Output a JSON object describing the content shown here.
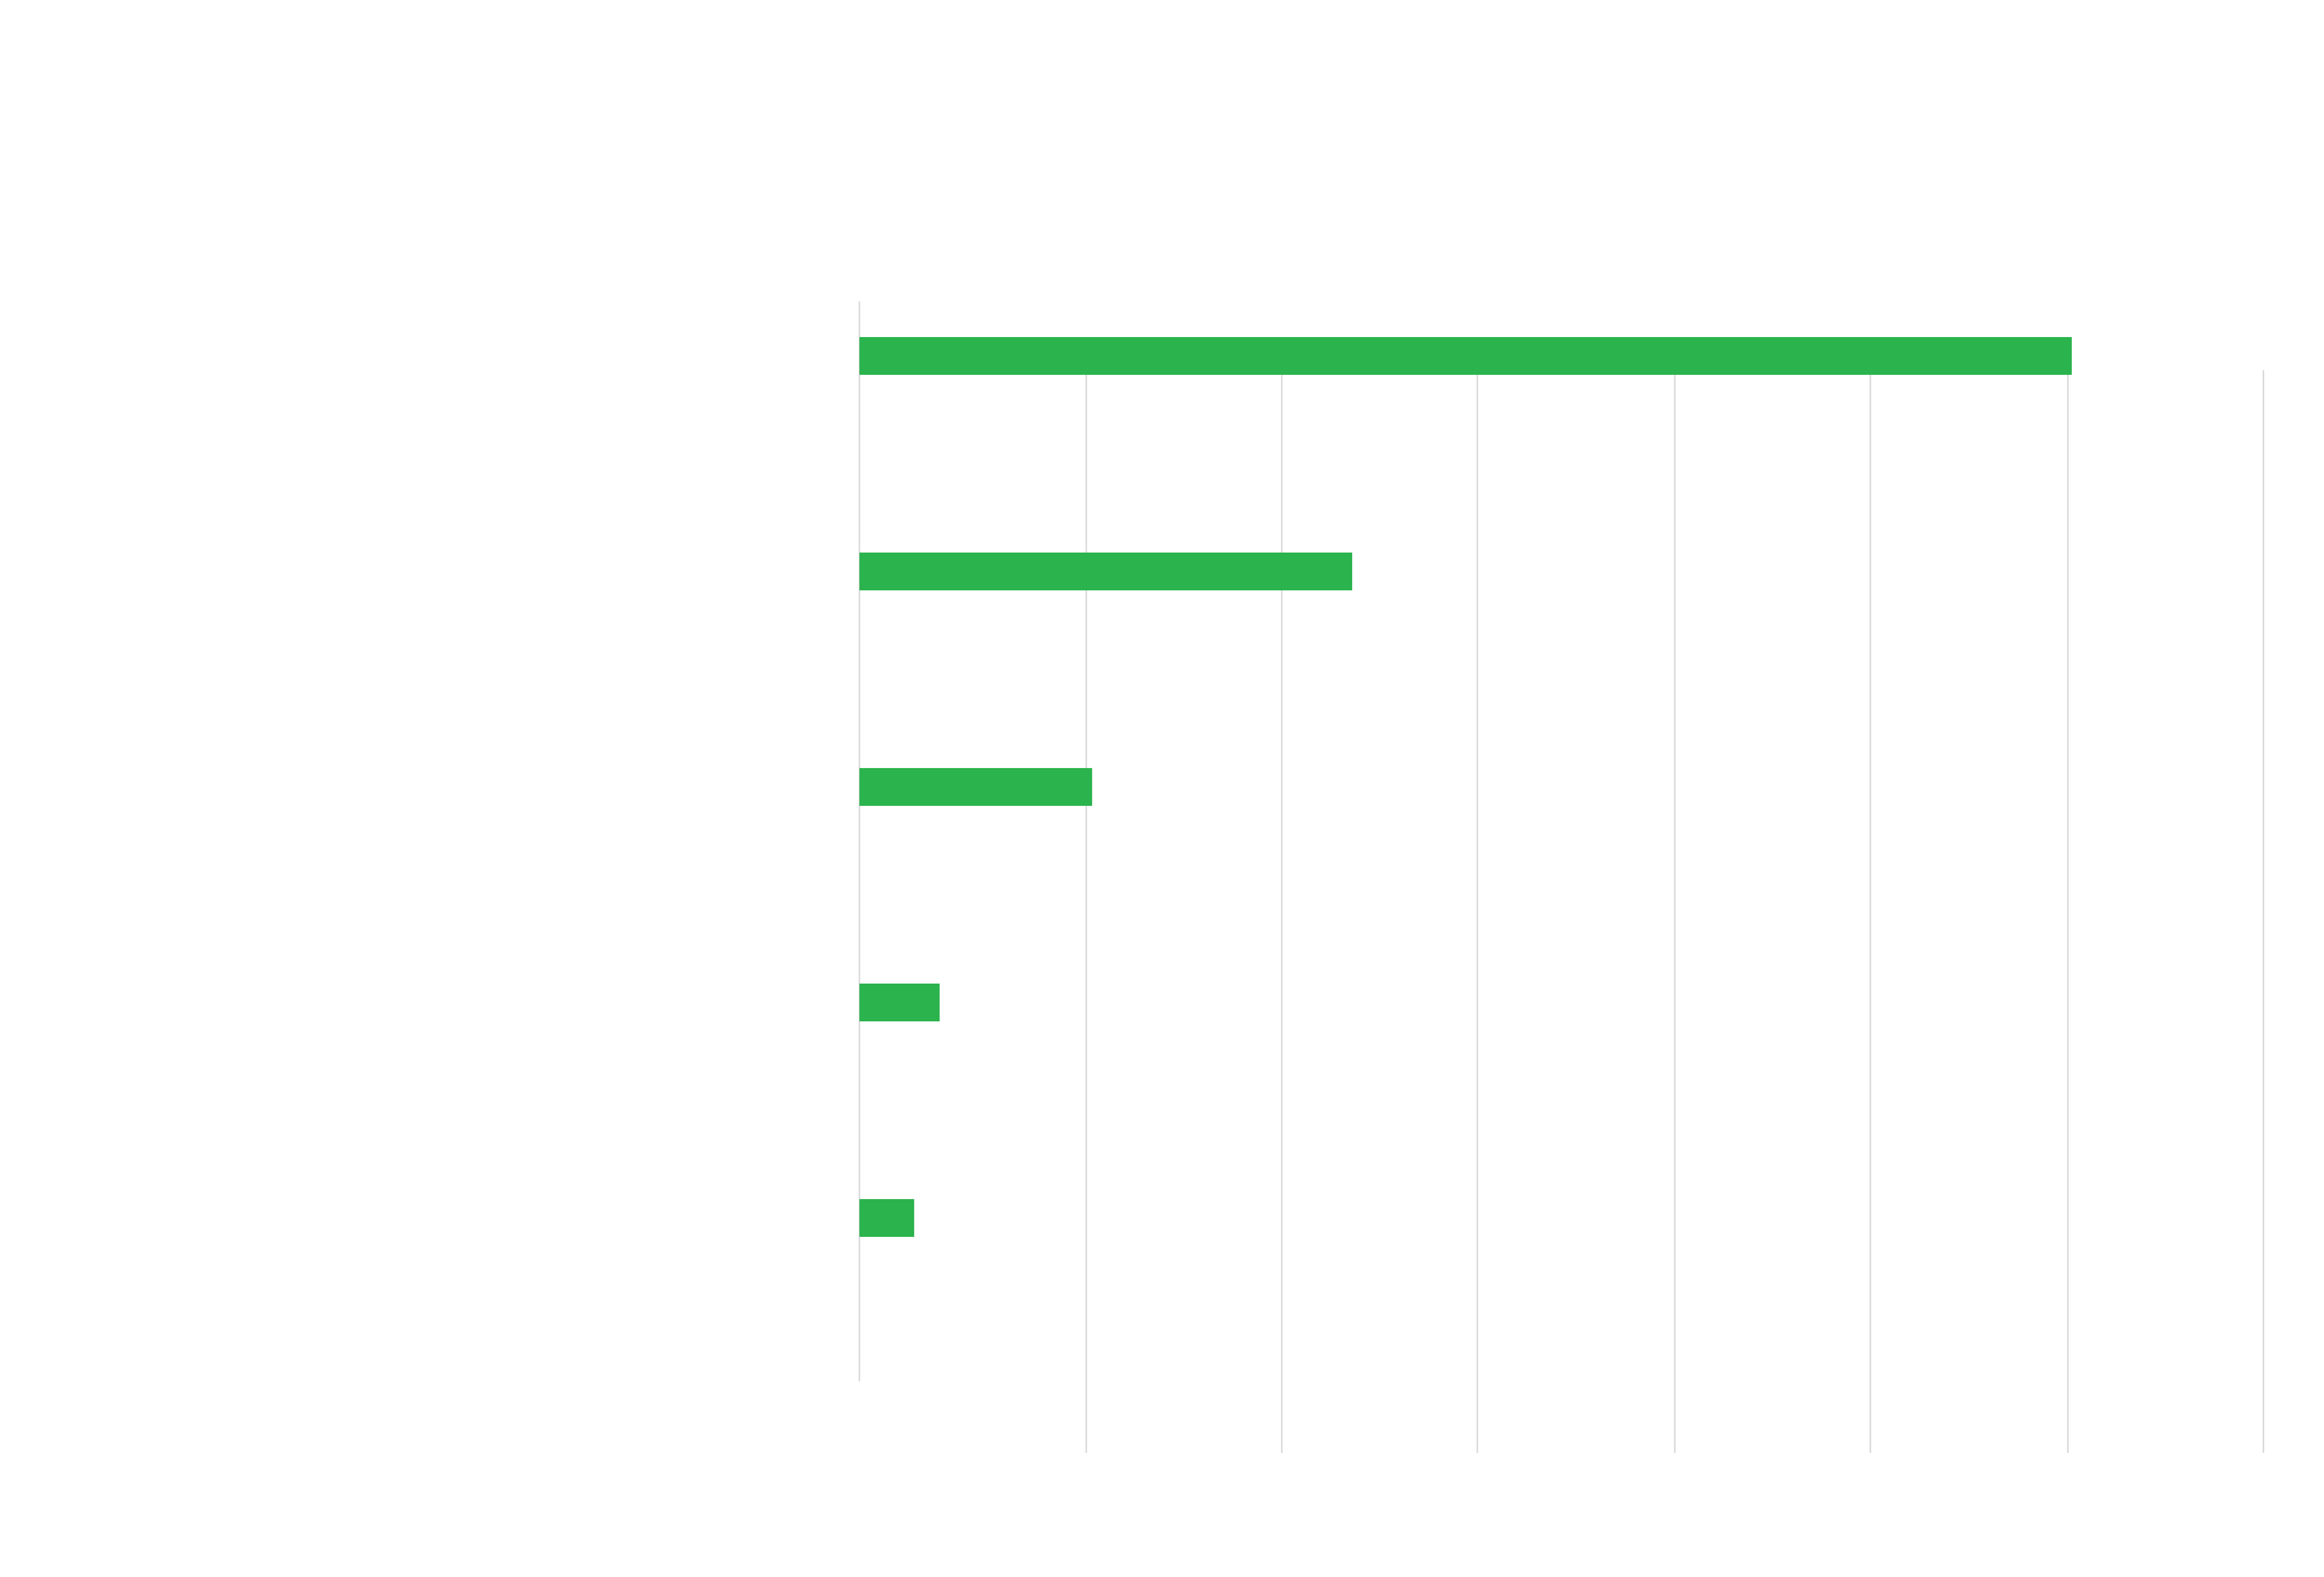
{
  "chart_data": {
    "type": "bar",
    "orientation": "horizontal",
    "categories": [
      "",
      "",
      "",
      "",
      ""
    ],
    "values": [
      62,
      25.2,
      11.9,
      4.1,
      2.8
    ],
    "xlim": [
      0,
      72
    ],
    "grid": true,
    "legend": "none",
    "colors": {
      "bar": "#2bb34d",
      "grid": "#d9d9d9",
      "background": "#ffffff"
    }
  }
}
